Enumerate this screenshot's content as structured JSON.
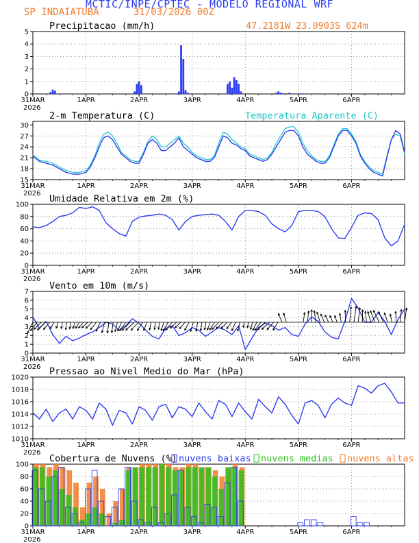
{
  "header": {
    "title": "MCTIC/INPE/CPTEC - MODELO REGIONAL WRF",
    "station": "SP INDAIATUBA",
    "run_date": "31/03/2026 00Z",
    "coords": "47.2181W 23.0903S 624m"
  },
  "colors": {
    "blue": "#2c3cf0",
    "cyan": "#20c8c8",
    "green": "#30c020",
    "orange": "#f07c2c",
    "grid": "#777777"
  },
  "x_axis": {
    "hours_total": 168,
    "labels": [
      {
        "h": 0,
        "text": "31MAR",
        "year": "2026"
      },
      {
        "h": 24,
        "text": "1APR"
      },
      {
        "h": 48,
        "text": "2APR"
      },
      {
        "h": 72,
        "text": "3APR"
      },
      {
        "h": 96,
        "text": "4APR"
      },
      {
        "h": 120,
        "text": "5APR"
      },
      {
        "h": 144,
        "text": "6APR"
      }
    ]
  },
  "chart_data": [
    {
      "id": "precip",
      "type": "bar",
      "title": "Precipitacao (mm/h)",
      "ylim": [
        0,
        5
      ],
      "yticks": [
        0,
        1,
        2,
        3,
        4,
        5
      ],
      "x_hours": [
        8,
        9,
        10,
        46,
        47,
        48,
        49,
        66,
        67,
        68,
        69,
        70,
        88,
        89,
        90,
        91,
        92,
        93,
        94,
        110,
        111,
        112,
        113,
        116,
        121
      ],
      "values": [
        0.15,
        0.35,
        0.25,
        0.2,
        0.8,
        1.0,
        0.7,
        0.2,
        3.9,
        2.8,
        0.3,
        0.1,
        0.8,
        1.0,
        0.5,
        1.35,
        1.1,
        0.8,
        0.2,
        0.1,
        0.2,
        0.1,
        0.05,
        0.1,
        0.05
      ]
    },
    {
      "id": "temp",
      "type": "line",
      "title": "2-m Temperatura (C)",
      "legend2": "Temperatura Aparente (C)",
      "ylim": [
        15,
        31
      ],
      "yticks": [
        15,
        18,
        21,
        24,
        27,
        30
      ],
      "x": [
        0,
        3,
        6,
        9,
        12,
        15,
        18,
        21,
        24,
        26,
        28,
        30,
        32,
        34,
        36,
        38,
        40,
        42,
        44,
        46,
        48,
        50,
        52,
        54,
        56,
        58,
        60,
        62,
        64,
        66,
        68,
        70,
        72,
        74,
        76,
        78,
        80,
        82,
        84,
        86,
        88,
        90,
        92,
        94,
        96,
        98,
        100,
        102,
        104,
        106,
        108,
        110,
        112,
        114,
        116,
        118,
        120,
        122,
        124,
        126,
        128,
        130,
        132,
        134,
        136,
        138,
        140,
        142,
        144,
        146,
        148,
        150,
        152,
        154,
        156,
        158,
        160,
        162,
        164,
        166,
        168
      ],
      "series": [
        {
          "name": "Temperatura",
          "values": [
            21.5,
            20,
            19.5,
            19,
            18,
            17,
            16.5,
            16.5,
            17,
            18.5,
            21,
            24,
            26.5,
            27,
            26,
            24,
            22,
            21,
            20,
            19.5,
            19.5,
            22,
            25,
            26,
            25,
            23,
            23,
            24,
            25,
            26.5,
            24,
            23,
            22,
            21,
            20.5,
            20,
            20,
            21,
            24,
            27,
            26.5,
            25,
            24.5,
            23.5,
            23,
            21.5,
            21,
            20.5,
            20,
            20.5,
            22,
            24,
            26,
            28,
            28.5,
            28.5,
            27,
            24,
            22,
            21,
            20,
            19.5,
            19.5,
            21,
            24,
            27,
            28.5,
            28.5,
            27,
            25,
            21.5,
            19.5,
            18,
            17,
            16.5,
            16,
            21,
            26,
            28.5,
            27.5,
            22.5
          ]
        },
        {
          "name": "Temperatura Aparente",
          "values": [
            21.8,
            20.3,
            20,
            19.5,
            18.5,
            17.5,
            17,
            17,
            17.5,
            19,
            21.5,
            25,
            27.5,
            28,
            27,
            25,
            22.5,
            21.5,
            20.5,
            20,
            20,
            22.5,
            25.5,
            27,
            26,
            24,
            24,
            25,
            26,
            27,
            25,
            24,
            22.5,
            21.5,
            21,
            20.5,
            20.5,
            21.5,
            25,
            28,
            27.5,
            26,
            25,
            24,
            23.5,
            22,
            21.5,
            21,
            20.5,
            21,
            22.5,
            25,
            27,
            29,
            29.5,
            29.5,
            28,
            25,
            23,
            21.5,
            20.5,
            20,
            20,
            21.5,
            24.5,
            27.5,
            29,
            29,
            27.5,
            25.5,
            22,
            20,
            18.5,
            17.5,
            17,
            16.5,
            21.5,
            26,
            27.5,
            27,
            22
          ]
        }
      ]
    },
    {
      "id": "rh",
      "type": "line",
      "title": "Umidade Relativa em 2m (%)",
      "ylim": [
        0,
        100
      ],
      "yticks": [
        0,
        20,
        40,
        60,
        80,
        100
      ],
      "x": [
        0,
        3,
        6,
        9,
        12,
        15,
        18,
        21,
        24,
        27,
        30,
        33,
        36,
        39,
        42,
        45,
        48,
        51,
        54,
        57,
        60,
        63,
        66,
        69,
        72,
        75,
        78,
        81,
        84,
        87,
        90,
        93,
        96,
        99,
        102,
        105,
        108,
        111,
        114,
        117,
        120,
        123,
        126,
        129,
        132,
        135,
        138,
        141,
        144,
        147,
        150,
        153,
        156,
        159,
        162,
        165,
        168
      ],
      "values": [
        63,
        62,
        65,
        72,
        80,
        82,
        86,
        95,
        93,
        96,
        90,
        70,
        60,
        52,
        48,
        72,
        79,
        81,
        82,
        84,
        82,
        75,
        58,
        72,
        80,
        82,
        83,
        84,
        82,
        72,
        58,
        80,
        90,
        90,
        88,
        82,
        68,
        60,
        55,
        65,
        88,
        90,
        90,
        88,
        80,
        60,
        45,
        44,
        62,
        82,
        86,
        85,
        75,
        45,
        32,
        40,
        67
      ]
    },
    {
      "id": "wind",
      "type": "line",
      "title": "Vento em 10m (m/s)",
      "ylim": [
        0,
        7
      ],
      "yticks": [
        0,
        1,
        2,
        3,
        4,
        5,
        6,
        7
      ],
      "x": [
        0,
        3,
        6,
        9,
        12,
        15,
        18,
        21,
        24,
        27,
        30,
        33,
        36,
        39,
        42,
        45,
        48,
        51,
        54,
        57,
        60,
        63,
        66,
        69,
        72,
        75,
        78,
        81,
        84,
        87,
        90,
        93,
        96,
        99,
        102,
        105,
        108,
        111,
        114,
        117,
        120,
        123,
        126,
        129,
        132,
        135,
        138,
        141,
        144,
        147,
        150,
        153,
        156,
        159,
        162,
        165,
        168
      ],
      "series": [
        {
          "name": "velocidade",
          "values": [
            4.1,
            2.8,
            3.6,
            2.1,
            1.1,
            1.9,
            1.4,
            1.7,
            2.1,
            2.4,
            2.9,
            3.5,
            3.3,
            2.6,
            3.1,
            3.9,
            3.4,
            2.6,
            1.9,
            1.6,
            2.8,
            3.1,
            2.0,
            2.3,
            2.9,
            2.6,
            1.9,
            2.4,
            2.9,
            2.6,
            2.1,
            3.1,
            0.4,
            1.7,
            2.9,
            3.4,
            3.1,
            2.6,
            2.9,
            2.1,
            1.9,
            3.3,
            4.1,
            3.6,
            2.4,
            1.8,
            1.6,
            3.6,
            6.2,
            5.1,
            3.5,
            3.5,
            4.6,
            3.6,
            2.1,
            3.8,
            5.0
          ]
        }
      ],
      "arrow_count": 89
    },
    {
      "id": "pres",
      "type": "line",
      "title": "Pressao ao Nivel Medio do Mar (hPa)",
      "ylim": [
        1010,
        1020
      ],
      "yticks": [
        1010,
        1012,
        1014,
        1016,
        1018,
        1020
      ],
      "x": [
        0,
        3,
        6,
        9,
        12,
        15,
        18,
        21,
        24,
        27,
        30,
        33,
        36,
        39,
        42,
        45,
        48,
        51,
        54,
        57,
        60,
        63,
        66,
        69,
        72,
        75,
        78,
        81,
        84,
        87,
        90,
        93,
        96,
        99,
        102,
        105,
        108,
        111,
        114,
        117,
        120,
        123,
        126,
        129,
        132,
        135,
        138,
        141,
        144,
        147,
        150,
        153,
        156,
        159,
        162,
        165,
        168
      ],
      "values": [
        1014.2,
        1013.2,
        1014.8,
        1012.8,
        1014.2,
        1014.8,
        1013.2,
        1015.2,
        1014.6,
        1013.2,
        1015.8,
        1014.8,
        1012.2,
        1014.6,
        1014.2,
        1012.4,
        1015.2,
        1014.6,
        1013.0,
        1015.2,
        1015.6,
        1013.4,
        1015.2,
        1014.8,
        1013.6,
        1015.8,
        1014.4,
        1013.2,
        1016.2,
        1015.6,
        1013.6,
        1015.8,
        1014.4,
        1013.2,
        1016.4,
        1015.2,
        1014.2,
        1016.8,
        1015.6,
        1013.8,
        1012.4,
        1015.8,
        1016.2,
        1015.4,
        1013.4,
        1015.6,
        1016.6,
        1015.8,
        1015.4,
        1018.6,
        1018.2,
        1017.4,
        1018.6,
        1019.0,
        1017.6,
        1015.8,
        1015.8
      ]
    },
    {
      "id": "clouds",
      "type": "bar",
      "title": "Cobertura de Nuvens (%)",
      "legend": [
        "nuvens baixas",
        "nuvens medias",
        "nuvens altas"
      ],
      "ylim": [
        0,
        100
      ],
      "yticks": [
        0,
        20,
        40,
        60,
        80,
        100
      ],
      "x_hours": [
        0,
        3,
        6,
        9,
        12,
        15,
        18,
        21,
        24,
        27,
        30,
        33,
        36,
        39,
        42,
        45,
        48,
        51,
        54,
        57,
        60,
        63,
        66,
        69,
        72,
        75,
        78,
        81,
        84,
        87,
        90,
        93,
        96,
        99,
        102,
        105,
        108,
        111,
        114,
        117,
        120,
        123,
        126,
        129,
        132,
        135,
        138,
        141,
        144,
        147,
        150,
        153,
        156,
        159,
        162,
        165
      ],
      "series": [
        {
          "name": "nuvens baixas",
          "values": [
            90,
            60,
            40,
            80,
            95,
            30,
            20,
            5,
            60,
            90,
            40,
            15,
            30,
            60,
            95,
            40,
            10,
            5,
            30,
            5,
            20,
            50,
            90,
            30,
            15,
            5,
            35,
            30,
            15,
            70,
            95,
            40,
            0,
            0,
            0,
            0,
            0,
            0,
            0,
            0,
            5,
            10,
            10,
            5,
            0,
            0,
            0,
            0,
            15,
            5,
            5,
            0,
            0,
            0,
            0,
            0
          ]
        },
        {
          "name": "nuvens medias",
          "values": [
            95,
            95,
            80,
            90,
            60,
            50,
            30,
            10,
            20,
            30,
            20,
            0,
            5,
            10,
            90,
            95,
            95,
            95,
            95,
            100,
            95,
            90,
            90,
            95,
            95,
            95,
            95,
            80,
            60,
            95,
            95,
            90,
            0,
            0,
            0,
            0,
            0,
            0,
            0,
            0,
            0,
            0,
            0,
            0,
            0,
            0,
            0,
            0,
            0,
            0,
            0,
            0,
            0,
            0,
            0,
            0
          ]
        },
        {
          "name": "nuvens altas",
          "values": [
            100,
            100,
            95,
            100,
            95,
            90,
            70,
            30,
            70,
            80,
            60,
            20,
            40,
            60,
            95,
            95,
            100,
            100,
            100,
            100,
            100,
            95,
            95,
            100,
            100,
            95,
            95,
            90,
            80,
            95,
            100,
            95,
            0,
            0,
            0,
            0,
            0,
            0,
            0,
            0,
            0,
            0,
            0,
            0,
            0,
            0,
            0,
            0,
            0,
            0,
            0,
            0,
            0,
            0,
            0,
            0
          ]
        }
      ]
    }
  ]
}
